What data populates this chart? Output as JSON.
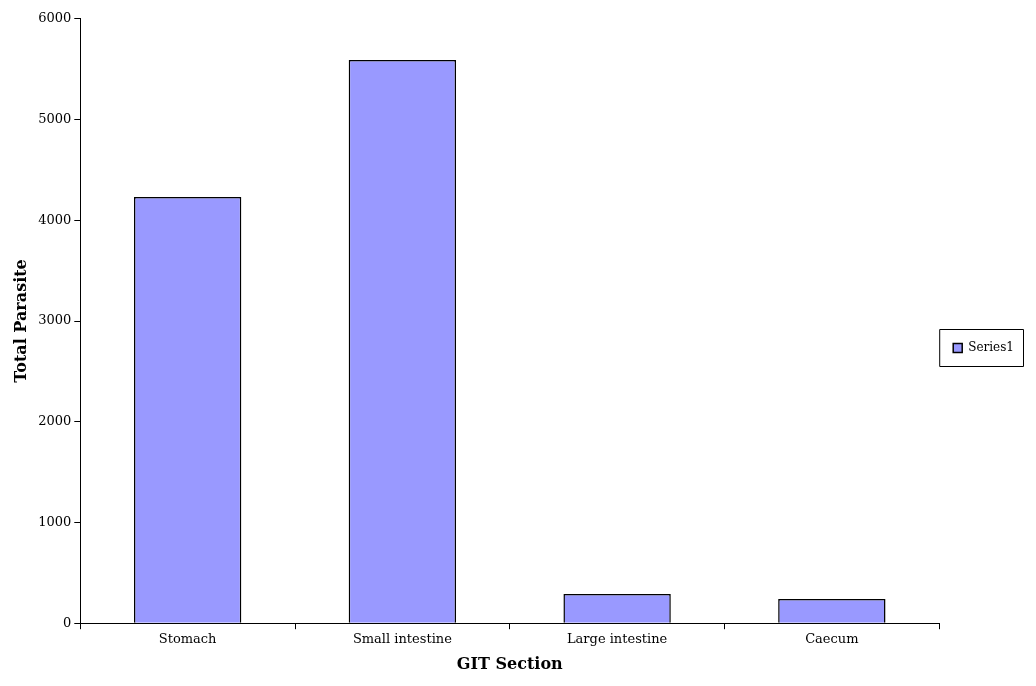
{
  "chart_data": {
    "type": "bar",
    "xlabel": "GIT Section",
    "ylabel": "Total Parasite",
    "categories": [
      "Stomach",
      "Small intestine",
      "Large intestine",
      "Caecum"
    ],
    "series": [
      {
        "name": "Series1",
        "color": "#9999ff",
        "values": [
          4230,
          5590,
          290,
          240
        ]
      }
    ],
    "ylim": [
      0,
      6000
    ],
    "yticks": [
      0,
      1000,
      2000,
      3000,
      4000,
      5000,
      6000
    ],
    "grid": false,
    "legend": "right"
  }
}
